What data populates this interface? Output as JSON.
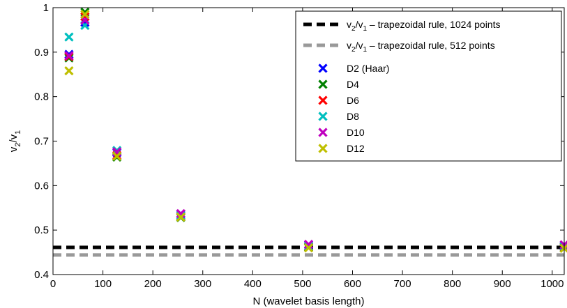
{
  "chart_data": {
    "type": "scatter",
    "xlabel": "N (wavelet basis length)",
    "ylabel_main": "v",
    "ylabel_sub1": "2",
    "ylabel_mid": "/v",
    "ylabel_sub2": "1",
    "xlim": [
      0,
      1024
    ],
    "ylim": [
      0.4,
      1.0
    ],
    "xticks": [
      0,
      100,
      200,
      300,
      400,
      500,
      600,
      700,
      800,
      900,
      1000
    ],
    "yticks": [
      0.4,
      0.5,
      0.6,
      0.7,
      0.8,
      0.9,
      1.0
    ],
    "ytick_labels": [
      "0.4",
      "0.5",
      "0.6",
      "0.7",
      "0.8",
      "0.9",
      "1"
    ],
    "grid": false,
    "legend_position": "top-right",
    "reference_lines": [
      {
        "label_main": "v",
        "label_sub1": "2",
        "label_mid": "/v",
        "label_sub2": "1",
        "label_rest": " – trapezoidal rule, 1024 points",
        "y": 0.461,
        "color": "#000000"
      },
      {
        "label_main": "v",
        "label_sub1": "2",
        "label_mid": "/v",
        "label_sub2": "1",
        "label_rest": " – trapezoidal rule, 512 points",
        "y": 0.444,
        "color": "#999999"
      }
    ],
    "x": [
      32,
      64,
      128,
      256,
      512,
      1024
    ],
    "series": [
      {
        "name": "D2 (Haar)",
        "color": "#0000ff",
        "values": [
          0.895,
          0.967,
          0.674,
          0.536,
          0.467,
          0.466
        ]
      },
      {
        "name": "D4",
        "color": "#008000",
        "values": [
          0.887,
          0.99,
          0.664,
          0.528,
          0.461,
          0.46
        ]
      },
      {
        "name": "D6",
        "color": "#ff0000",
        "values": [
          0.89,
          0.98,
          0.668,
          0.531,
          0.463,
          0.462
        ]
      },
      {
        "name": "D8",
        "color": "#00bfbf",
        "values": [
          0.934,
          0.96,
          0.679,
          0.533,
          0.464,
          0.463
        ]
      },
      {
        "name": "D10",
        "color": "#bf00bf",
        "values": [
          0.892,
          0.972,
          0.676,
          0.537,
          0.468,
          0.467
        ]
      },
      {
        "name": "D12",
        "color": "#bfbf00",
        "values": [
          0.858,
          0.985,
          0.666,
          0.529,
          0.46,
          0.459
        ]
      }
    ]
  }
}
